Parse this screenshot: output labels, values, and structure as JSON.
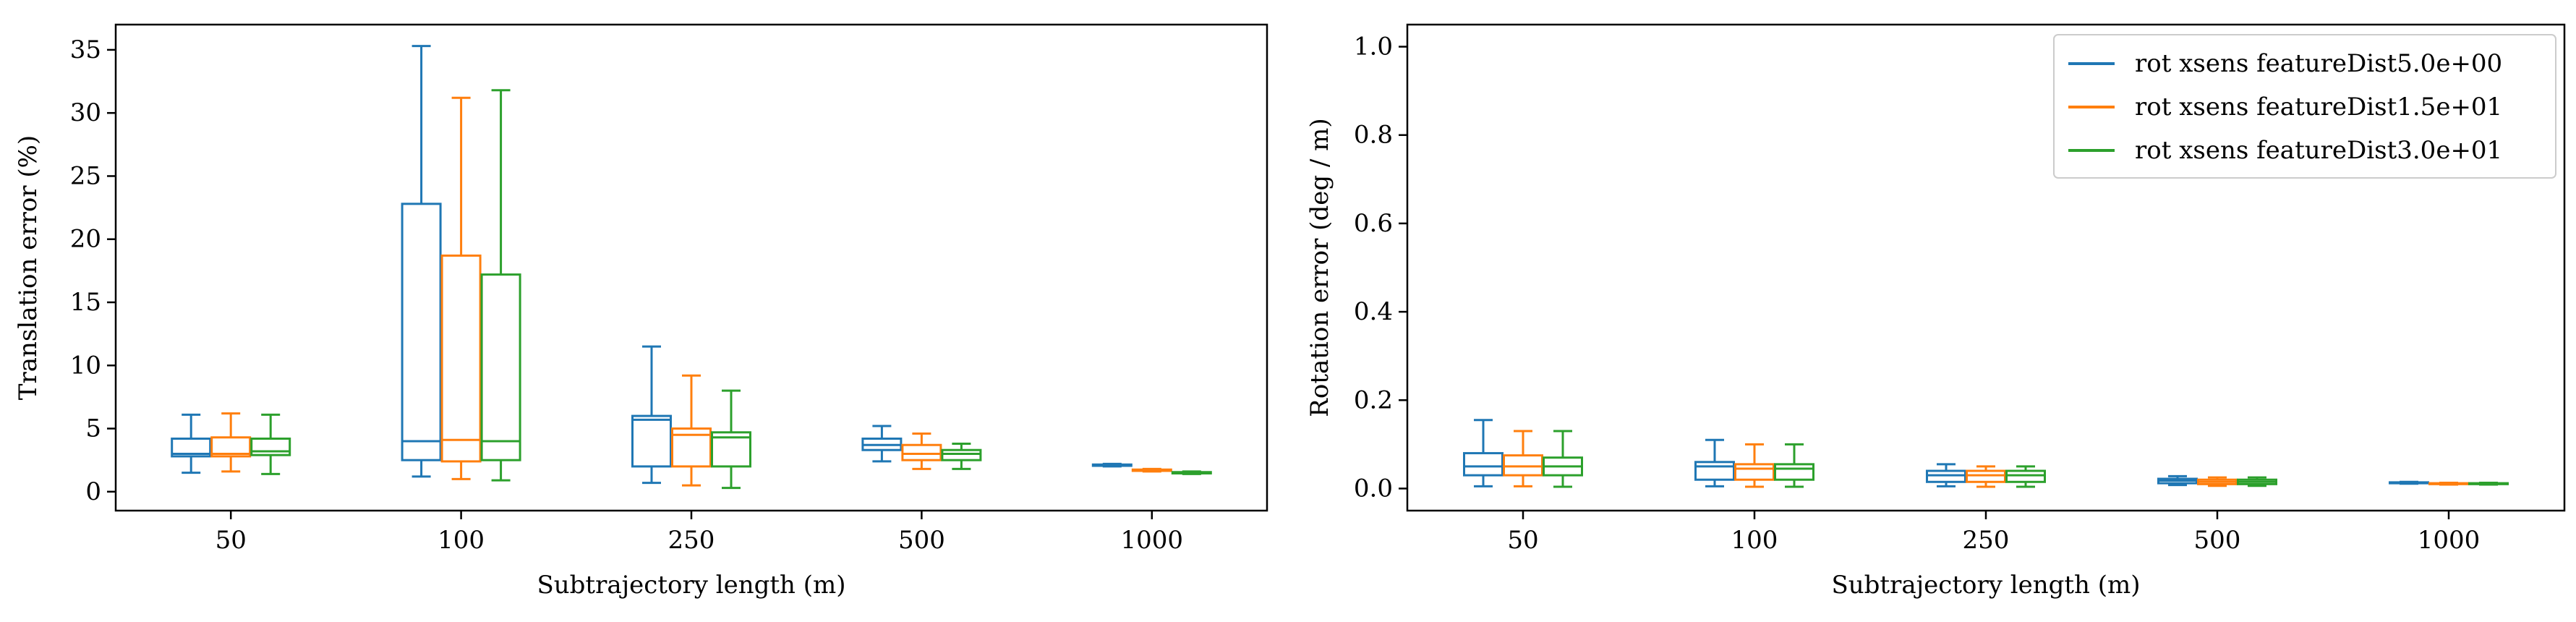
{
  "chart_data": [
    {
      "type": "box",
      "title": "",
      "xlabel": "Subtrajectory length (m)",
      "ylabel": "Translation error (%)",
      "categories": [
        "50",
        "100",
        "250",
        "500",
        "1000"
      ],
      "ylim": [
        -1.5,
        37
      ],
      "yticks": [
        0,
        5,
        10,
        15,
        20,
        25,
        30,
        35
      ],
      "grid": false,
      "legend": null,
      "series": [
        {
          "name": "rot xsens featureDist5.0e+00",
          "color": "#1f77b4",
          "boxes": [
            {
              "min": 1.5,
              "q1": 2.8,
              "median": 3.0,
              "q3": 4.2,
              "max": 6.1
            },
            {
              "min": 1.2,
              "q1": 2.5,
              "median": 4.0,
              "q3": 22.8,
              "max": 35.3
            },
            {
              "min": 0.7,
              "q1": 2.0,
              "median": 5.7,
              "q3": 6.0,
              "max": 11.5
            },
            {
              "min": 2.4,
              "q1": 3.3,
              "median": 3.7,
              "q3": 4.2,
              "max": 5.2
            },
            {
              "min": 2.0,
              "q1": 2.05,
              "median": 2.1,
              "q3": 2.15,
              "max": 2.2
            }
          ]
        },
        {
          "name": "rot xsens featureDist1.5e+01",
          "color": "#ff7f0e",
          "boxes": [
            {
              "min": 1.6,
              "q1": 2.8,
              "median": 3.0,
              "q3": 4.3,
              "max": 6.2
            },
            {
              "min": 1.0,
              "q1": 2.4,
              "median": 4.1,
              "q3": 18.7,
              "max": 31.2
            },
            {
              "min": 0.5,
              "q1": 2.0,
              "median": 4.5,
              "q3": 5.0,
              "max": 9.2
            },
            {
              "min": 1.8,
              "q1": 2.5,
              "median": 3.0,
              "q3": 3.7,
              "max": 4.6
            },
            {
              "min": 1.6,
              "q1": 1.65,
              "median": 1.7,
              "q3": 1.75,
              "max": 1.8
            }
          ]
        },
        {
          "name": "rot xsens featureDist3.0e+01",
          "color": "#2ca02c",
          "boxes": [
            {
              "min": 1.4,
              "q1": 2.9,
              "median": 3.2,
              "q3": 4.2,
              "max": 6.1
            },
            {
              "min": 0.9,
              "q1": 2.5,
              "median": 4.0,
              "q3": 17.2,
              "max": 31.8
            },
            {
              "min": 0.3,
              "q1": 2.0,
              "median": 4.3,
              "q3": 4.7,
              "max": 8.0
            },
            {
              "min": 1.8,
              "q1": 2.5,
              "median": 3.0,
              "q3": 3.3,
              "max": 3.8
            },
            {
              "min": 1.4,
              "q1": 1.45,
              "median": 1.5,
              "q3": 1.55,
              "max": 1.6
            }
          ]
        }
      ]
    },
    {
      "type": "box",
      "title": "",
      "xlabel": "Subtrajectory length (m)",
      "ylabel": "Rotation error (deg / m)",
      "categories": [
        "50",
        "100",
        "250",
        "500",
        "1000"
      ],
      "ylim": [
        -0.05,
        1.05
      ],
      "yticks": [
        "0.0",
        "0.2",
        "0.4",
        "0.6",
        "0.8",
        "1.0"
      ],
      "grid": false,
      "legend": "top-right",
      "series": [
        {
          "name": "rot xsens featureDist5.0e+00",
          "color": "#1f77b4",
          "boxes": [
            {
              "min": 0.005,
              "q1": 0.03,
              "median": 0.05,
              "q3": 0.08,
              "max": 0.155
            },
            {
              "min": 0.005,
              "q1": 0.02,
              "median": 0.05,
              "q3": 0.06,
              "max": 0.11
            },
            {
              "min": 0.005,
              "q1": 0.015,
              "median": 0.03,
              "q3": 0.04,
              "max": 0.055
            },
            {
              "min": 0.008,
              "q1": 0.012,
              "median": 0.018,
              "q3": 0.022,
              "max": 0.028
            },
            {
              "min": 0.011,
              "q1": 0.012,
              "median": 0.013,
              "q3": 0.014,
              "max": 0.015
            }
          ]
        },
        {
          "name": "rot xsens featureDist1.5e+01",
          "color": "#ff7f0e",
          "boxes": [
            {
              "min": 0.005,
              "q1": 0.03,
              "median": 0.05,
              "q3": 0.075,
              "max": 0.13
            },
            {
              "min": 0.004,
              "q1": 0.02,
              "median": 0.045,
              "q3": 0.055,
              "max": 0.1
            },
            {
              "min": 0.004,
              "q1": 0.015,
              "median": 0.03,
              "q3": 0.04,
              "max": 0.05
            },
            {
              "min": 0.006,
              "q1": 0.01,
              "median": 0.015,
              "q3": 0.02,
              "max": 0.025
            },
            {
              "min": 0.009,
              "q1": 0.01,
              "median": 0.011,
              "q3": 0.012,
              "max": 0.013
            }
          ]
        },
        {
          "name": "rot xsens featureDist3.0e+01",
          "color": "#2ca02c",
          "boxes": [
            {
              "min": 0.004,
              "q1": 0.03,
              "median": 0.05,
              "q3": 0.07,
              "max": 0.13
            },
            {
              "min": 0.004,
              "q1": 0.02,
              "median": 0.045,
              "q3": 0.055,
              "max": 0.1
            },
            {
              "min": 0.004,
              "q1": 0.015,
              "median": 0.03,
              "q3": 0.04,
              "max": 0.05
            },
            {
              "min": 0.006,
              "q1": 0.01,
              "median": 0.015,
              "q3": 0.02,
              "max": 0.025
            },
            {
              "min": 0.009,
              "q1": 0.01,
              "median": 0.011,
              "q3": 0.012,
              "max": 0.013
            }
          ]
        }
      ]
    }
  ]
}
